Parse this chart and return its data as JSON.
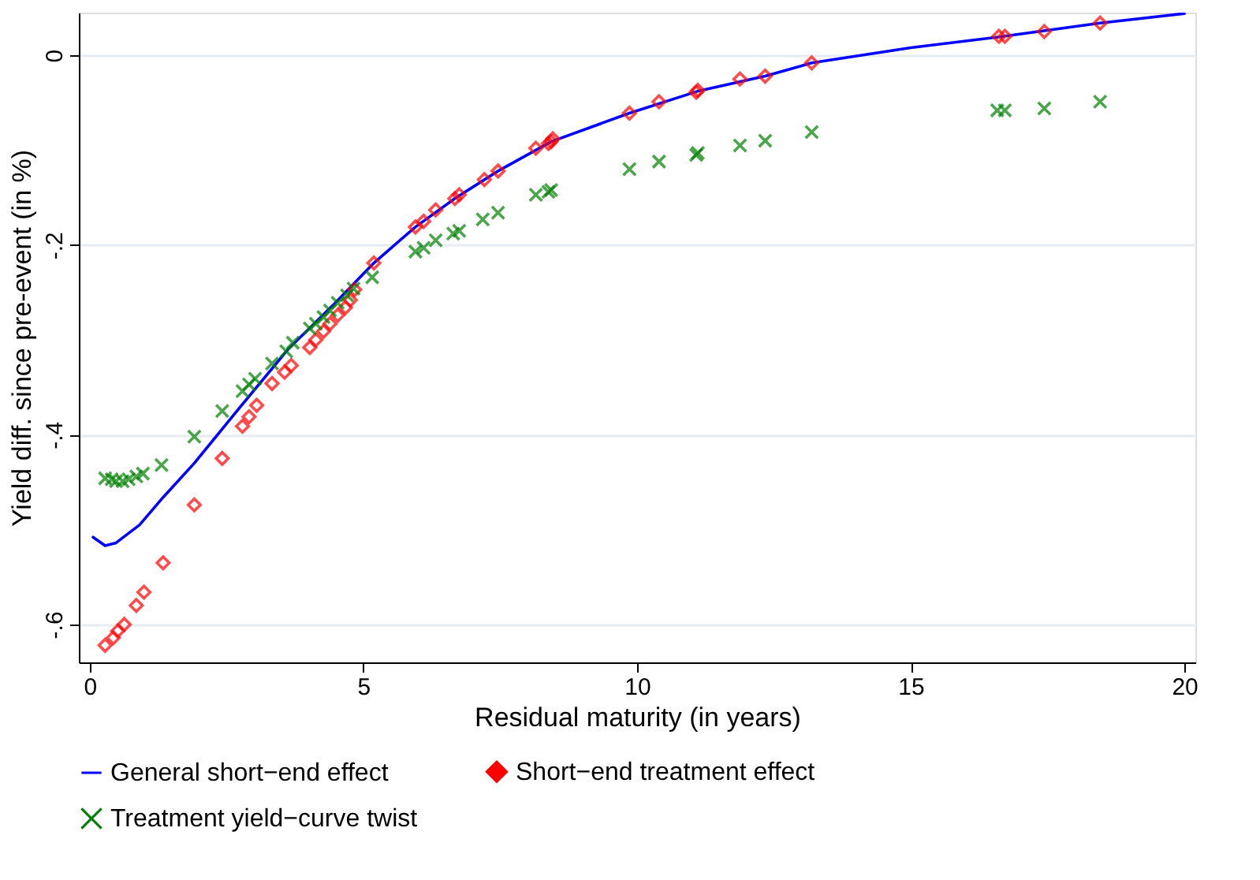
{
  "chart_data": {
    "type": "scatter",
    "xlabel": "Residual maturity (in years)",
    "ylabel": "Yield diff. since pre-event (in %)",
    "xlim": [
      -0.2,
      20.2
    ],
    "ylim": [
      -0.64,
      0.045
    ],
    "xticks": [
      0,
      5,
      10,
      15,
      20
    ],
    "yticks": [
      {
        "value": 0,
        "label": "0"
      },
      {
        "value": -0.2,
        "label": "-.2"
      },
      {
        "value": -0.4,
        "label": "-.4"
      },
      {
        "value": -0.6,
        "label": "-.6"
      }
    ],
    "grid": "y",
    "legend": "bottom",
    "series": [
      {
        "name": "General short−end effect",
        "type": "line",
        "color": "#0000ff",
        "line_style": "solid",
        "marker": "none",
        "x": [
          0.06,
          0.28,
          0.48,
          0.91,
          1.34,
          1.91,
          2.76,
          3.62,
          4.47,
          5.19,
          5.95,
          6.67,
          7.46,
          8.43,
          9.86,
          11.1,
          12.34,
          13.19,
          15,
          16.7,
          18.46,
          20
        ],
        "values": [
          -0.508,
          -0.517,
          -0.514,
          -0.495,
          -0.466,
          -0.43,
          -0.37,
          -0.31,
          -0.262,
          -0.219,
          -0.181,
          -0.151,
          -0.122,
          -0.091,
          -0.061,
          -0.038,
          -0.022,
          -0.008,
          0.008,
          0.02,
          0.034,
          0.044
        ]
      },
      {
        "name": "Short−end treatment effect",
        "type": "scatter",
        "color": "#ff0000",
        "marker": "diamond",
        "x": [
          0.28,
          0.43,
          0.51,
          0.63,
          0.85,
          0.99,
          1.34,
          1.91,
          2.42,
          2.79,
          2.91,
          3.05,
          3.33,
          3.56,
          3.68,
          4.02,
          4.13,
          4.27,
          4.39,
          4.53,
          4.67,
          4.76,
          4.84,
          5.19,
          5.95,
          6.1,
          6.32,
          6.67,
          6.75,
          7.21,
          7.46,
          8.15,
          8.38,
          8.43,
          8.46,
          9.86,
          10.4,
          11.08,
          11.11,
          11.88,
          12.34,
          13.19,
          16.61,
          16.72,
          17.44,
          18.46
        ],
        "values": [
          -0.622,
          -0.614,
          -0.607,
          -0.6,
          -0.58,
          -0.566,
          -0.535,
          -0.474,
          -0.425,
          -0.391,
          -0.381,
          -0.369,
          -0.346,
          -0.334,
          -0.327,
          -0.308,
          -0.3,
          -0.291,
          -0.283,
          -0.274,
          -0.266,
          -0.258,
          -0.247,
          -0.219,
          -0.181,
          -0.175,
          -0.163,
          -0.151,
          -0.147,
          -0.131,
          -0.122,
          -0.098,
          -0.093,
          -0.091,
          -0.088,
          -0.061,
          -0.049,
          -0.039,
          -0.037,
          -0.025,
          -0.022,
          -0.008,
          0.02,
          0.02,
          0.025,
          0.034
        ]
      },
      {
        "name": "Treatment yield−curve twist",
        "type": "scatter",
        "color": "#008000",
        "marker": "cross",
        "x": [
          0.28,
          0.4,
          0.48,
          0.6,
          0.71,
          0.85,
          0.97,
          1.31,
          1.91,
          2.42,
          2.79,
          2.91,
          3.02,
          3.33,
          3.59,
          3.71,
          4.02,
          4.13,
          4.27,
          4.39,
          4.53,
          4.7,
          4.82,
          5.16,
          5.95,
          6.1,
          6.32,
          6.64,
          6.75,
          7.18,
          7.46,
          8.15,
          8.38,
          8.43,
          9.86,
          10.4,
          11.08,
          11.11,
          11.88,
          12.34,
          13.19,
          16.58,
          16.72,
          17.44,
          18.46
        ],
        "values": [
          -0.446,
          -0.447,
          -0.449,
          -0.449,
          -0.447,
          -0.444,
          -0.441,
          -0.432,
          -0.402,
          -0.375,
          -0.354,
          -0.347,
          -0.341,
          -0.325,
          -0.312,
          -0.303,
          -0.288,
          -0.283,
          -0.276,
          -0.269,
          -0.261,
          -0.253,
          -0.246,
          -0.234,
          -0.207,
          -0.203,
          -0.195,
          -0.188,
          -0.185,
          -0.173,
          -0.166,
          -0.147,
          -0.144,
          -0.142,
          -0.12,
          -0.112,
          -0.105,
          -0.103,
          -0.095,
          -0.09,
          -0.081,
          -0.058,
          -0.058,
          -0.056,
          -0.049
        ]
      }
    ]
  }
}
